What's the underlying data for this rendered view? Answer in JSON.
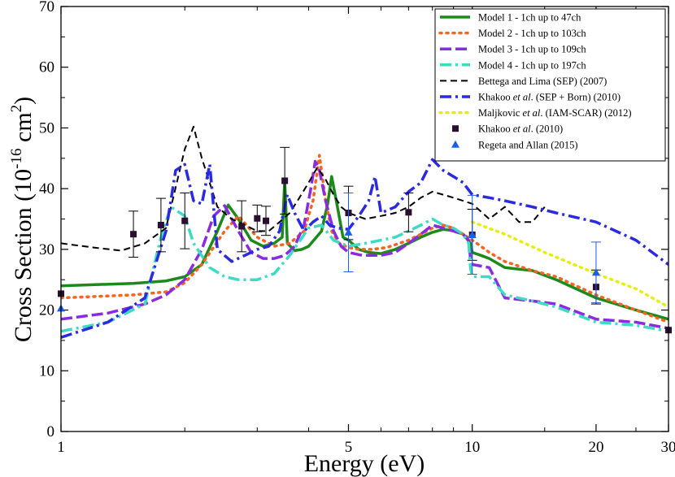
{
  "chart_data": {
    "type": "line",
    "xscale": "log",
    "xlabel": "Energy (eV)",
    "ylabel": "Cross Section (10^-16 cm^2)",
    "ylabel_parts": {
      "main": "Cross Section (10",
      "exp1": "-16",
      "unit": " cm",
      "exp2": "2",
      "close": ")"
    },
    "xlim": [
      1,
      30
    ],
    "ylim": [
      0,
      70
    ],
    "xticks": [
      1,
      5,
      10,
      20,
      30
    ],
    "xtick_labels": [
      "1",
      "5",
      "10",
      "20",
      "30"
    ],
    "yticks": [
      0,
      10,
      20,
      30,
      40,
      50,
      60,
      70
    ],
    "ytick_labels": [
      "0",
      "10",
      "20",
      "30",
      "40",
      "50",
      "60",
      "70"
    ],
    "series": [
      {
        "name": "Model 1 - 1ch up to 47ch",
        "color": "#1b8a1b",
        "style": "solid",
        "width": 3.5,
        "x": [
          1,
          1.5,
          1.8,
          2.0,
          2.2,
          2.4,
          2.55,
          2.7,
          2.9,
          3.1,
          3.3,
          3.45,
          3.5,
          3.55,
          3.7,
          3.85,
          4.0,
          4.3,
          4.45,
          4.55,
          4.7,
          4.85,
          5.0,
          5.3,
          5.6,
          6.0,
          6.5,
          7.0,
          7.5,
          8.0,
          8.5,
          9.0,
          9.5,
          9.9,
          10.0,
          10.5,
          11,
          12,
          14,
          16,
          20,
          25,
          30
        ],
        "y": [
          24.0,
          24.4,
          24.8,
          25.5,
          27.5,
          33.0,
          37.3,
          35.0,
          31.5,
          30.5,
          31.0,
          32.0,
          41.5,
          31.0,
          29.8,
          30.0,
          30.5,
          33.0,
          37.5,
          42.0,
          37.0,
          32.0,
          31.5,
          30.0,
          29.5,
          29.3,
          30.0,
          31.0,
          32.0,
          32.8,
          33.3,
          33.1,
          32.5,
          31.0,
          29.5,
          29.0,
          28.5,
          27.0,
          26.5,
          25.0,
          22.0,
          20.0,
          18.5
        ]
      },
      {
        "name": "Model 2 - 1ch up to 103ch",
        "color": "#f26522",
        "style": "dotted",
        "width": 3.5,
        "x": [
          1,
          1.5,
          1.8,
          2.0,
          2.2,
          2.5,
          2.7,
          3.0,
          3.3,
          3.6,
          3.9,
          4.1,
          4.25,
          4.4,
          4.55,
          4.75,
          5.0,
          5.3,
          5.7,
          6.2,
          7.0,
          7.5,
          8.0,
          8.5,
          9.0,
          9.5,
          10.0,
          10.5,
          11,
          12,
          14,
          16,
          20,
          25,
          30
        ],
        "y": [
          22.0,
          22.5,
          23.0,
          24.5,
          27.5,
          33.0,
          35.5,
          32.0,
          30.5,
          31.0,
          33.0,
          38.0,
          45.5,
          38.0,
          33.0,
          31.0,
          30.3,
          30.0,
          30.0,
          30.3,
          31.5,
          32.5,
          33.5,
          34.0,
          33.5,
          32.5,
          31.5,
          30.5,
          29.5,
          28.0,
          26.5,
          25.5,
          22.5,
          20.0,
          18.0
        ]
      },
      {
        "name": "Model 3 - 1ch up to 109ch",
        "color": "#8a2be2",
        "style": "dashdash",
        "width": 3.5,
        "x": [
          1,
          1.3,
          1.6,
          1.8,
          2.0,
          2.2,
          2.35,
          2.5,
          2.7,
          2.9,
          3.1,
          3.3,
          3.5,
          3.7,
          3.9,
          4.05,
          4.15,
          4.25,
          4.4,
          4.6,
          4.8,
          5.0,
          5.4,
          6.0,
          6.5,
          7.0,
          7.5,
          8.0,
          8.5,
          9.0,
          9.5,
          9.8,
          9.9,
          10.0,
          11,
          12,
          14,
          16,
          20,
          25,
          30
        ],
        "y": [
          18.5,
          19.5,
          21.0,
          22.5,
          25.0,
          30.0,
          35.5,
          37.2,
          33.0,
          29.5,
          28.5,
          28.5,
          29.0,
          30.5,
          34.0,
          40.0,
          44.5,
          43.0,
          38.0,
          33.0,
          30.5,
          29.5,
          29.0,
          29.0,
          29.5,
          31.0,
          32.5,
          34.0,
          33.5,
          33.0,
          32.5,
          31.5,
          28.5,
          27.5,
          27.0,
          22.0,
          21.5,
          21.0,
          18.5,
          18.0,
          17.0
        ]
      },
      {
        "name": "Model 4 - 1ch up to 197ch",
        "color": "#3ddbc4",
        "style": "dashdot",
        "width": 3.5,
        "x": [
          1,
          1.3,
          1.6,
          1.75,
          1.85,
          2.0,
          2.1,
          2.3,
          2.5,
          2.7,
          3.0,
          3.3,
          3.6,
          4.0,
          4.3,
          4.6,
          5.0,
          5.5,
          6.0,
          6.5,
          7.0,
          7.5,
          8.0,
          8.5,
          9.0,
          9.5,
          9.8,
          9.9,
          10.0,
          11,
          12,
          14,
          16,
          20,
          25,
          30
        ],
        "y": [
          16.5,
          18.0,
          21.0,
          32.0,
          37.0,
          35.5,
          31.0,
          27.0,
          25.5,
          25.0,
          25.0,
          26.0,
          29.0,
          33.5,
          34.0,
          31.5,
          30.5,
          31.0,
          31.5,
          32.0,
          33.0,
          34.0,
          35.0,
          34.0,
          33.5,
          32.5,
          31.0,
          27.0,
          25.5,
          25.5,
          22.5,
          21.5,
          20.5,
          18.0,
          17.5,
          16.5
        ]
      },
      {
        "name": "Bettega and Lima (SEP) (2007)",
        "color": "#000000",
        "style": "dashed",
        "width": 2,
        "x": [
          1,
          1.2,
          1.4,
          1.6,
          1.8,
          2.0,
          2.1,
          2.2,
          2.4,
          2.6,
          2.8,
          3.0,
          3.2,
          3.4,
          3.6,
          3.8,
          4.0,
          4.2,
          4.4,
          4.6,
          4.8,
          5.0,
          5.5,
          6.0,
          6.5,
          7.0,
          7.5,
          8.0,
          8.5,
          9.0,
          9.5,
          10.0,
          11,
          12,
          13,
          14,
          15
        ],
        "y": [
          31.0,
          30.3,
          29.8,
          31.0,
          33.5,
          46.5,
          50.2,
          45.0,
          37.0,
          35.0,
          34.0,
          33.0,
          33.0,
          34.5,
          36.0,
          38.5,
          41.0,
          43.5,
          41.5,
          39.0,
          37.0,
          36.0,
          35.0,
          35.5,
          36.0,
          37.0,
          38.5,
          39.5,
          39.0,
          38.5,
          38.0,
          37.5,
          35.0,
          37.0,
          34.5,
          34.5,
          37.0
        ]
      },
      {
        "name": "Khakoo et al. (SEP + Born) (2010)",
        "color": "#2a2ae0",
        "style": "dashdot",
        "width": 3.5,
        "x": [
          1,
          1.3,
          1.6,
          1.8,
          1.9,
          2.0,
          2.1,
          2.2,
          2.3,
          2.4,
          2.6,
          2.8,
          3.0,
          3.2,
          3.4,
          3.55,
          3.7,
          3.9,
          4.1,
          4.3,
          4.5,
          4.7,
          5.0,
          5.3,
          5.6,
          5.8,
          6.0,
          6.5,
          7.0,
          7.5,
          8.0,
          8.5,
          9.0,
          9.5,
          10.0,
          11,
          12,
          14,
          16,
          20,
          25,
          30
        ],
        "y": [
          15.5,
          18.0,
          22.0,
          33.0,
          43.0,
          44.0,
          38.0,
          37.5,
          44.0,
          30.0,
          28.0,
          29.0,
          30.0,
          30.5,
          33.0,
          39.0,
          36.0,
          33.0,
          34.5,
          35.5,
          34.0,
          33.5,
          33.3,
          35.5,
          38.0,
          42.0,
          36.0,
          37.0,
          39.5,
          41.0,
          44.8,
          43.0,
          42.0,
          41.0,
          39.0,
          38.5,
          38.0,
          37.0,
          36.0,
          34.5,
          31.5,
          27.5
        ]
      },
      {
        "name": "Maljkovic et al. (IAM-SCAR) (2012)",
        "color": "#e5ee0f",
        "style": "dotted",
        "width": 3.5,
        "x": [
          10,
          12,
          15,
          20,
          25,
          30
        ],
        "y": [
          34.5,
          32.5,
          29.5,
          26.0,
          23.5,
          20.5
        ]
      }
    ],
    "points": [
      {
        "name": "Khakoo et al. (2010)",
        "color": "#2a1030",
        "marker": "square",
        "errcolor": "#000000",
        "x": [
          1.0,
          1.5,
          1.75,
          2.0,
          2.75,
          3.0,
          3.15,
          3.5,
          5.0,
          7.0,
          10.0,
          20.0,
          30.0
        ],
        "y": [
          22.7,
          32.5,
          34.0,
          34.7,
          33.8,
          35.1,
          34.7,
          41.3,
          36.0,
          36.1,
          32.4,
          23.8,
          16.7
        ],
        "yerr": [
          0,
          3.8,
          4.4,
          4.6,
          4.2,
          2.2,
          2.4,
          5.5,
          4.4,
          3.2,
          4.2,
          2.8,
          0
        ]
      },
      {
        "name": "Regeta and Allan (2015)",
        "color": "#1c5ee8",
        "marker": "triangle",
        "errcolor": "#1c5ee8",
        "x": [
          1.0,
          5.0,
          10.0,
          20.0
        ],
        "y": [
          20.3,
          32.8,
          32.4,
          26.2
        ],
        "yerr": [
          0,
          6.5,
          6.5,
          5.0
        ]
      }
    ],
    "legend": {
      "position": "top-right",
      "entries": [
        {
          "label": "Model 1 - 1ch up to 47ch",
          "color": "#1b8a1b",
          "style": "solid"
        },
        {
          "label": "Model 2 - 1ch up to 103ch",
          "color": "#f26522",
          "style": "dotted"
        },
        {
          "label": "Model 3 - 1ch up to 109ch",
          "color": "#8a2be2",
          "style": "dashdash"
        },
        {
          "label": "Model 4 - 1ch up to 197ch",
          "color": "#3ddbc4",
          "style": "dashdot"
        },
        {
          "label": "Bettega and Lima (SEP) (2007)",
          "color": "#000000",
          "style": "dashed"
        },
        {
          "label_pre": "Khakoo ",
          "label_it": "et al",
          "label_post": ". (SEP + Born) (2010)",
          "color": "#2a2ae0",
          "style": "dashdot"
        },
        {
          "label_pre": " Maljkovic ",
          "label_it": "et al",
          "label_post": ". (IAM-SCAR) (2012)",
          "color": "#e5ee0f",
          "style": "dotted"
        },
        {
          "label_pre": "Khakoo ",
          "label_it": "et al",
          "label_post": ". (2010)",
          "color": "#2a1030",
          "style": "square"
        },
        {
          "label": "Regeta and Allan (2015)",
          "color": "#1c5ee8",
          "style": "triangle"
        }
      ]
    }
  }
}
